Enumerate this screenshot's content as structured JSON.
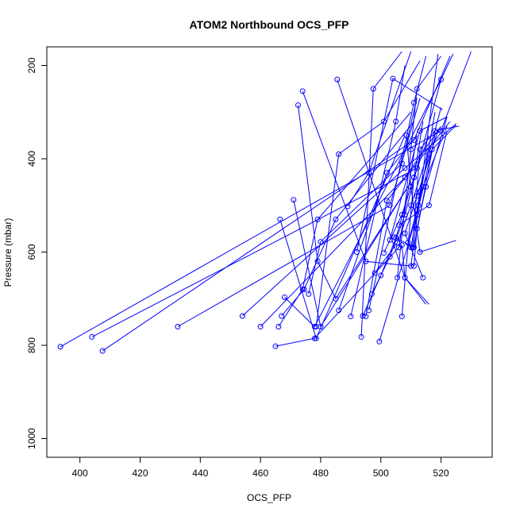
{
  "chart_data": {
    "type": "line",
    "title": "ATOM2 Northbound OCS_PFP",
    "xlabel": "OCS_PFP",
    "ylabel": "Pressure (mbar)",
    "xlim": [
      389,
      537
    ],
    "ylim": [
      1040,
      160
    ],
    "x_ticks": [
      400,
      420,
      440,
      460,
      480,
      500,
      520
    ],
    "y_ticks": [
      200,
      400,
      600,
      800,
      1000
    ],
    "grid": false,
    "series_color": "#0000ff",
    "profiles": [
      {
        "x": [
          393.5,
          520.0,
          530.0
        ],
        "y": [
          803,
          340,
          170
        ]
      },
      {
        "x": [
          404.0,
          512.0,
          520.0
        ],
        "y": [
          782,
          420,
          230
        ]
      },
      {
        "x": [
          407.5,
          511.0,
          523.0
        ],
        "y": [
          812,
          360,
          180
        ]
      },
      {
        "x": [
          432.5,
          503.0,
          513.0
        ],
        "y": [
          760,
          500,
          270
        ]
      },
      {
        "x": [
          454.0,
          508.0,
          525.0
        ],
        "y": [
          737,
          420,
          325
        ]
      },
      {
        "x": [
          460.0,
          508.0,
          520.0
        ],
        "y": [
          760,
          440,
          330
        ]
      },
      {
        "x": [
          465.0,
          478.0,
          506.0,
          512.0
        ],
        "y": [
          802,
          785,
          590,
          350
        ]
      },
      {
        "x": [
          466.0,
          474.0,
          479.0,
          510.0
        ],
        "y": [
          760,
          680,
          530,
          300
        ]
      },
      {
        "x": [
          466.5,
          478.5,
          508.0
        ],
        "y": [
          530,
          785,
          350
        ]
      },
      {
        "x": [
          467.0,
          474.5,
          485.0,
          511.0
        ],
        "y": [
          737,
          680,
          530,
          320
        ]
      },
      {
        "x": [
          468.0,
          478.0,
          520.0,
          524.0
        ],
        "y": [
          697,
          760,
          230,
          175
        ]
      },
      {
        "x": [
          471.0,
          480.0,
          509.0
        ],
        "y": [
          488,
          760,
          460
        ]
      },
      {
        "x": [
          472.5,
          479.0,
          485.0,
          510.0
        ],
        "y": [
          285,
          620,
          700,
          450
        ]
      },
      {
        "x": [
          474.0,
          495.0,
          510.0,
          519.0
        ],
        "y": [
          255,
          620,
          630,
          175
        ]
      },
      {
        "x": [
          476.0,
          480.0,
          507.0,
          512.0
        ],
        "y": [
          690,
          578,
          410,
          270
        ]
      },
      {
        "x": [
          478.5,
          486.0,
          501.0,
          513.0
        ],
        "y": [
          760,
          390,
          320,
          190
        ]
      },
      {
        "x": [
          485.5,
          508.0,
          515.0
        ],
        "y": [
          230,
          655,
          712
        ]
      },
      {
        "x": [
          486.0,
          502.0,
          512.0
        ],
        "y": [
          725,
          430,
          350
        ]
      },
      {
        "x": [
          489.0,
          496.0,
          510.0
        ],
        "y": [
          502,
          430,
          170
        ]
      },
      {
        "x": [
          490.0,
          505.0,
          508.0
        ],
        "y": [
          738,
          320,
          200
        ]
      },
      {
        "x": [
          492.0,
          504.0,
          520.5
        ],
        "y": [
          600,
          228,
          295
        ]
      },
      {
        "x": [
          493.5,
          497.5,
          507.0
        ],
        "y": [
          782,
          250,
          170
        ]
      },
      {
        "x": [
          495.0,
          502.0,
          523.0
        ],
        "y": [
          738,
          490,
          320
        ]
      },
      {
        "x": [
          496.0,
          511.0,
          515.0
        ],
        "y": [
          725,
          280,
          180
        ]
      },
      {
        "x": [
          499.5,
          512.0,
          518.0
        ],
        "y": [
          792,
          520,
          300
        ]
      },
      {
        "x": [
          503.0,
          513.0,
          522.0
        ],
        "y": [
          574,
          340,
          310
        ]
      },
      {
        "x": [
          504.5,
          511.0,
          518.0
        ],
        "y": [
          568,
          590,
          350
        ]
      },
      {
        "x": [
          505.5,
          510.0,
          512.0,
          520.0
        ],
        "y": [
          655,
          380,
          250,
          180
        ]
      },
      {
        "x": [
          506.0,
          516.0,
          522.0
        ],
        "y": [
          542,
          500,
          340
        ]
      },
      {
        "x": [
          507.0,
          508.0,
          516.0
        ],
        "y": [
          585,
          655,
          712
        ]
      },
      {
        "x": [
          507.0,
          511.0,
          514.0
        ],
        "y": [
          738,
          440,
          320
        ]
      },
      {
        "x": [
          508.5,
          510.0,
          513.0,
          525.0
        ],
        "y": [
          350,
          460,
          600,
          575
        ]
      },
      {
        "x": [
          509.0,
          512.5,
          514.0,
          522.0
        ],
        "y": [
          580,
          500,
          460,
          330
        ]
      },
      {
        "x": [
          510.0,
          512.0,
          517.0,
          525.0
        ],
        "y": [
          590,
          520,
          380,
          328
        ]
      },
      {
        "x": [
          510.5,
          513.0,
          518.0,
          526.0
        ],
        "y": [
          590,
          380,
          340,
          330
        ]
      },
      {
        "x": [
          511.0,
          512.0,
          515.0,
          522.0
        ],
        "y": [
          630,
          550,
          460,
          310
        ]
      },
      {
        "x": [
          512.0,
          513.0,
          516.0,
          520.0
        ],
        "y": [
          510,
          470,
          390,
          290
        ]
      },
      {
        "x": [
          514.0,
          508.0,
          512.0,
          519.0
        ],
        "y": [
          655,
          560,
          480,
          340
        ]
      },
      {
        "x": [
          498.0,
          505.5,
          510.0,
          516.0
        ],
        "y": [
          645,
          580,
          500,
          380
        ]
      },
      {
        "x": [
          501.0,
          507.0,
          511.0,
          516.0
        ],
        "y": [
          602,
          520,
          440,
          350
        ]
      },
      {
        "x": [
          494.0,
          500.0,
          505.0,
          509.0
        ],
        "y": [
          737,
          650,
          570,
          480
        ]
      },
      {
        "x": [
          497.0,
          503.0,
          508.0,
          512.0
        ],
        "y": [
          690,
          610,
          520,
          420
        ]
      }
    ]
  }
}
